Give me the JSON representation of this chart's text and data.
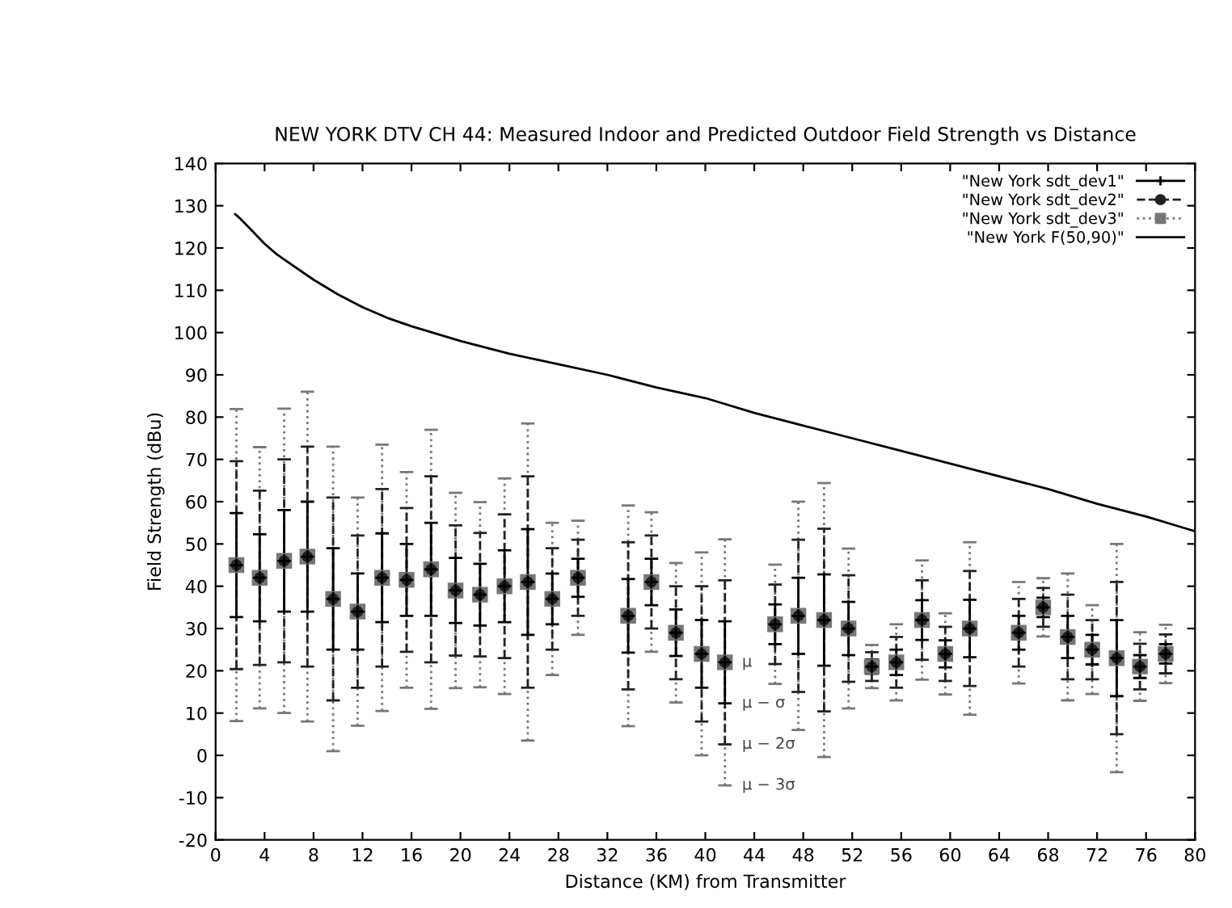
{
  "chart_data": {
    "type": "scatter",
    "title": "NEW YORK DTV CH 44: Measured Indoor and Predicted Outdoor Field Strength vs Distance",
    "xlabel": "Distance (KM) from Transmitter",
    "ylabel": "Field Strength (dBu)",
    "xlim": [
      0,
      80
    ],
    "xticks": [
      0,
      4,
      8,
      12,
      16,
      20,
      24,
      28,
      32,
      36,
      40,
      44,
      48,
      52,
      56,
      60,
      64,
      68,
      72,
      76,
      80
    ],
    "ylim": [
      -20,
      140
    ],
    "yticks": [
      -20,
      -10,
      0,
      10,
      20,
      30,
      40,
      50,
      60,
      70,
      80,
      90,
      100,
      110,
      120,
      130,
      140
    ],
    "grid": false,
    "legend": "top right",
    "series": [
      {
        "name": "\"New York sdt_dev1\"",
        "color": "#000000",
        "marker": "cross",
        "line_style": "solid",
        "x": [
          1.7,
          3.6,
          5.6,
          7.5,
          9.6,
          11.6,
          13.6,
          15.6,
          17.6,
          19.6,
          21.6,
          23.6,
          25.5,
          27.5,
          29.6,
          33.7,
          35.6,
          37.6,
          39.7,
          41.6,
          45.7,
          47.6,
          49.7,
          51.7,
          53.6,
          55.6,
          57.7,
          59.6,
          61.6,
          65.6,
          67.6,
          69.6,
          71.6,
          73.6,
          75.5,
          77.6
        ],
        "values": [
          45,
          42,
          46,
          47,
          37,
          34,
          42,
          41.5,
          44,
          39,
          38,
          40,
          41,
          37,
          42,
          33,
          41,
          29,
          24,
          22,
          31,
          33,
          32,
          30,
          21,
          22,
          32,
          24,
          30,
          29,
          35,
          28,
          25,
          23,
          21,
          24
        ],
        "errors": [
          12.3,
          10.3,
          12,
          13,
          12,
          9,
          10.5,
          8.5,
          11,
          7.7,
          7.3,
          8.5,
          12.5,
          6,
          4.5,
          8.7,
          5.5,
          5.5,
          8,
          9.7,
          4.7,
          9,
          10.8,
          6.3,
          1.7,
          3,
          4.7,
          3.2,
          6.8,
          4,
          2.3,
          5,
          3.5,
          9,
          2.7,
          2.3
        ]
      },
      {
        "name": "\"New York sdt_dev2\"",
        "color": "#222222",
        "marker": "circle",
        "line_style": "dashed",
        "x": [
          1.7,
          3.6,
          5.6,
          7.5,
          9.6,
          11.6,
          13.6,
          15.6,
          17.6,
          19.6,
          21.6,
          23.6,
          25.5,
          27.5,
          29.6,
          33.7,
          35.6,
          37.6,
          39.7,
          41.6,
          45.7,
          47.6,
          49.7,
          51.7,
          53.6,
          55.6,
          57.7,
          59.6,
          61.6,
          65.6,
          67.6,
          69.6,
          71.6,
          73.6,
          75.5,
          77.6
        ],
        "values": [
          45,
          42,
          46,
          47,
          37,
          34,
          42,
          41.5,
          44,
          39,
          38,
          40,
          41,
          37,
          42,
          33,
          41,
          29,
          24,
          22,
          31,
          33,
          32,
          30,
          21,
          22,
          32,
          24,
          30,
          29,
          35,
          28,
          25,
          23,
          21,
          24
        ],
        "errors": [
          24.6,
          20.6,
          24,
          26,
          24,
          18,
          21,
          17,
          22,
          15.4,
          14.6,
          17,
          25,
          12,
          9,
          17.4,
          11,
          11,
          16,
          19.4,
          9.4,
          18,
          21.6,
          12.6,
          3.4,
          6,
          9.4,
          6.4,
          13.6,
          8,
          4.6,
          10,
          7,
          18,
          5.4,
          4.6
        ]
      },
      {
        "name": "\"New York sdt_dev3\"",
        "color": "#777777",
        "marker": "square",
        "line_style": "dotted",
        "x": [
          1.7,
          3.6,
          5.6,
          7.5,
          9.6,
          11.6,
          13.6,
          15.6,
          17.6,
          19.6,
          21.6,
          23.6,
          25.5,
          27.5,
          29.6,
          33.7,
          35.6,
          37.6,
          39.7,
          41.6,
          45.7,
          47.6,
          49.7,
          51.7,
          53.6,
          55.6,
          57.7,
          59.6,
          61.6,
          65.6,
          67.6,
          69.6,
          71.6,
          73.6,
          75.5,
          77.6
        ],
        "values": [
          45,
          42,
          46,
          47,
          37,
          34,
          42,
          41.5,
          44,
          39,
          38,
          40,
          41,
          37,
          42,
          33,
          41,
          29,
          24,
          22,
          31,
          33,
          32,
          30,
          21,
          22,
          32,
          24,
          30,
          29,
          35,
          28,
          25,
          23,
          21,
          24
        ],
        "errors": [
          36.9,
          30.9,
          36,
          39,
          36,
          27,
          31.5,
          25.5,
          33,
          23.1,
          21.9,
          25.5,
          37.5,
          18,
          13.5,
          26.1,
          16.5,
          16.5,
          24,
          29.1,
          14.1,
          27,
          32.4,
          18.9,
          5.1,
          9,
          14.1,
          9.6,
          20.4,
          12,
          6.9,
          15,
          10.5,
          27,
          8.1,
          6.9
        ]
      },
      {
        "name": "\"New York F(50,90)\"",
        "type": "line",
        "color": "#000000",
        "marker": "none",
        "line_style": "solid",
        "x": [
          1.6,
          2,
          3,
          4,
          5,
          6,
          8,
          10,
          12,
          14,
          16,
          20,
          24,
          28,
          32,
          36,
          40,
          44,
          48,
          52,
          56,
          60,
          64,
          68,
          72,
          76,
          80
        ],
        "values": [
          128,
          127,
          124,
          121,
          118.5,
          116.5,
          112.5,
          109,
          106,
          103.5,
          101.5,
          98,
          95,
          92.5,
          90,
          87,
          84.5,
          81,
          78,
          75,
          72,
          69,
          66,
          63,
          59.5,
          56.5,
          53
        ]
      }
    ],
    "annotations": [
      "μ",
      "μ − σ",
      "μ − 2σ",
      "μ − 3σ"
    ]
  }
}
